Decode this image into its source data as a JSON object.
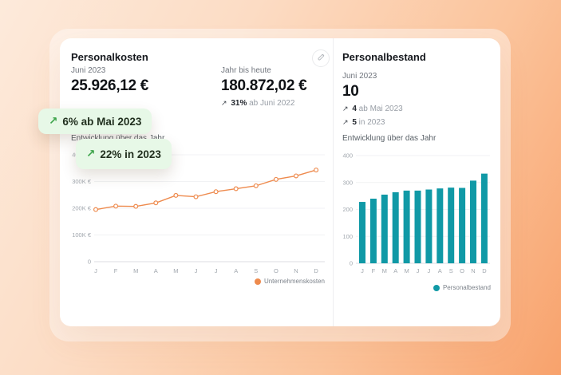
{
  "colors": {
    "accent_orange": "#ee8a4d",
    "accent_teal": "#1099a6",
    "badge_green": "#3ca44a",
    "badge_background": "#e7f8e7"
  },
  "card": {
    "left_panel": {
      "title": "Personalkosten",
      "stats": [
        {
          "label": "Juni 2023",
          "value": "25.926,12 €"
        },
        {
          "label": "Jahr bis heute",
          "value": "180.872,02 €",
          "delta_arrow": "↗",
          "delta_value": "31%",
          "delta_text": "ab Juni 2022"
        }
      ],
      "section_title": "Entwicklung über das Jahr"
    },
    "right_panel": {
      "title": "Personalbestand",
      "stat": {
        "label": "Juni 2023",
        "value": "10"
      },
      "deltas": [
        {
          "arrow": "↗",
          "value": "4",
          "text": "ab Mai 2023"
        },
        {
          "arrow": "↗",
          "value": "5",
          "text": "in 2023"
        }
      ],
      "section_title": "Entwicklung über das Jahr"
    }
  },
  "badges": [
    {
      "arrow": "↗",
      "text": "6% ab Mai 2023"
    },
    {
      "arrow": "↗",
      "text": "22% in 2023"
    }
  ],
  "chart_data": [
    {
      "type": "line",
      "title": "Entwicklung über das Jahr",
      "categories": [
        "J",
        "F",
        "M",
        "A",
        "M",
        "J",
        "J",
        "A",
        "S",
        "O",
        "N",
        "D"
      ],
      "values": [
        195000,
        208000,
        207000,
        220000,
        248000,
        243000,
        262000,
        273000,
        284000,
        308000,
        321000,
        343000
      ],
      "ylim": [
        0,
        400000
      ],
      "yticks": [
        0,
        100000,
        200000,
        300000,
        400000
      ],
      "ytick_labels": [
        "0",
        "100K €",
        "200K €",
        "300K €",
        "400K €"
      ],
      "legend": "Unternehmenskosten",
      "legend_position": "bottom-right",
      "grid": true,
      "color": "#ee8a4d"
    },
    {
      "type": "bar",
      "title": "Entwicklung über das Jahr",
      "categories": [
        "J",
        "F",
        "M",
        "A",
        "M",
        "J",
        "J",
        "A",
        "S",
        "O",
        "N",
        "D"
      ],
      "values": [
        228,
        240,
        255,
        264,
        270,
        270,
        274,
        278,
        281,
        280,
        307,
        333
      ],
      "ylim": [
        0,
        400
      ],
      "yticks": [
        0,
        100,
        200,
        300,
        400
      ],
      "ytick_labels": [
        "0",
        "100",
        "200",
        "300",
        "400"
      ],
      "legend": "Personalbestand",
      "legend_position": "bottom-right",
      "grid": true,
      "color": "#1099a6"
    }
  ]
}
